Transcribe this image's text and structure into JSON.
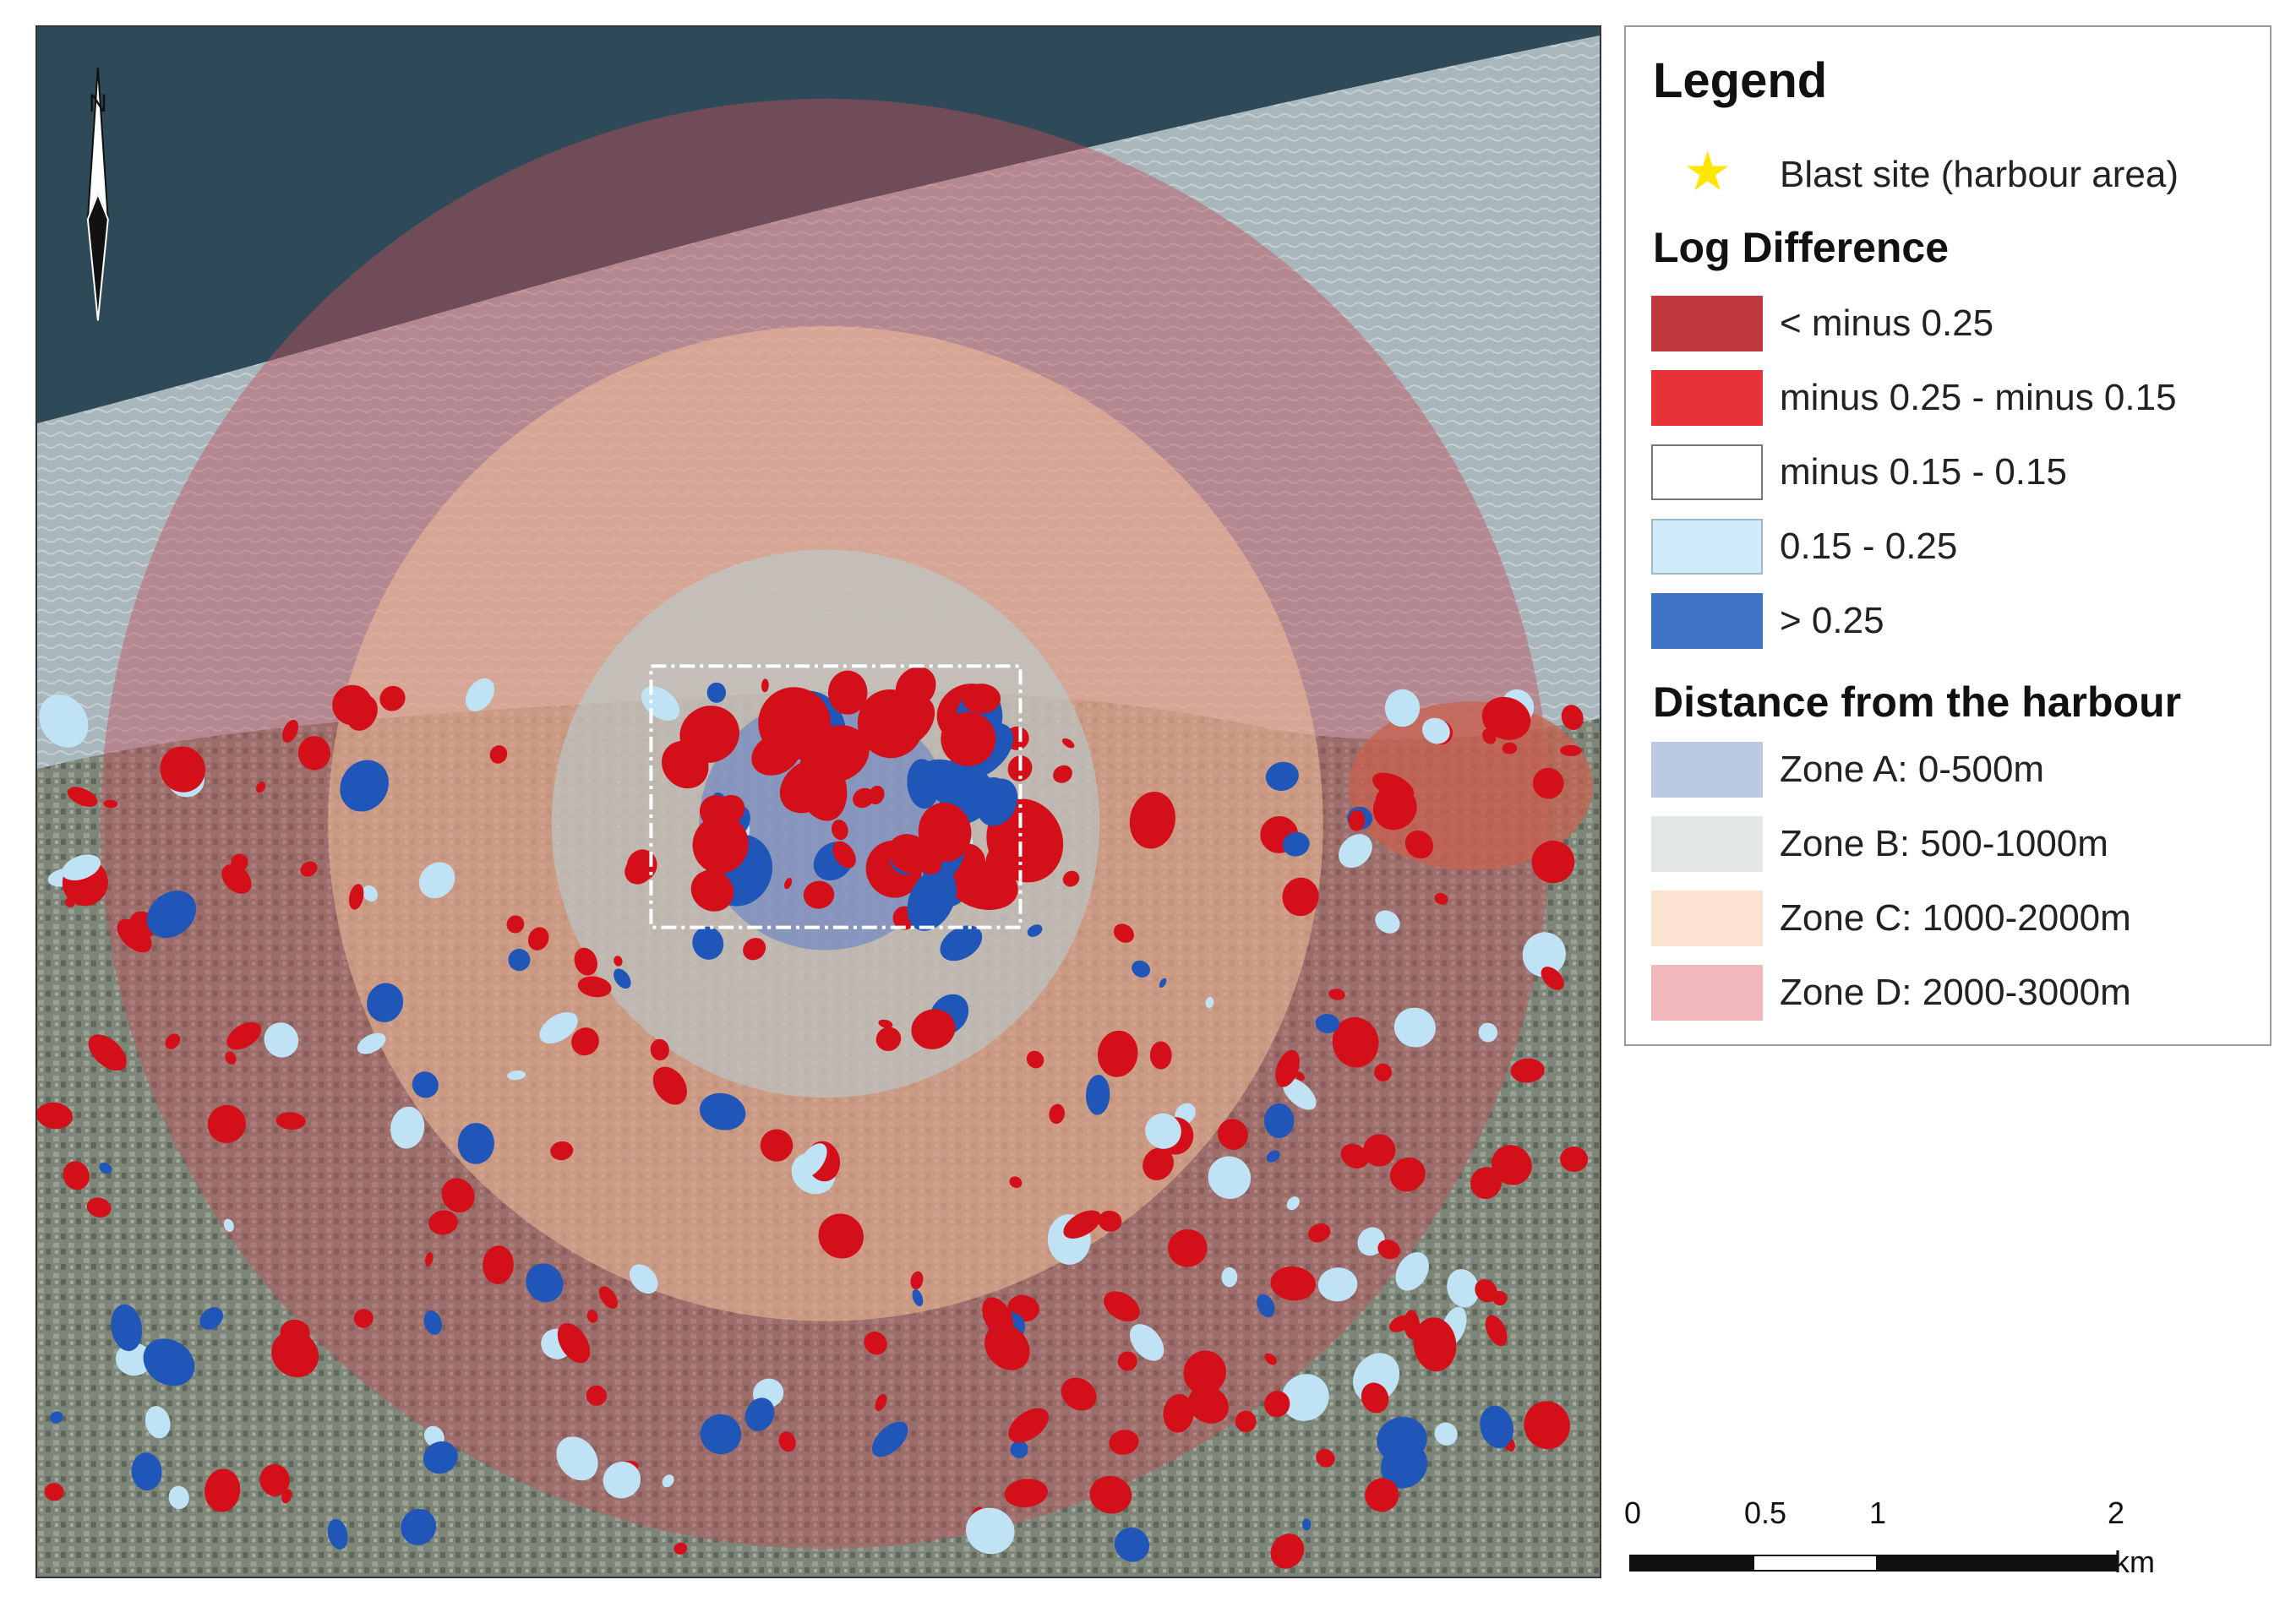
{
  "legend": {
    "title": "Legend",
    "blast": {
      "label": "Blast site (harbour area)",
      "color": "#ffe600",
      "icon": "star-icon"
    },
    "log_difference": {
      "heading": "Log Difference",
      "classes": [
        {
          "label": "< minus 0.25",
          "color": "#c0393d"
        },
        {
          "label": "minus 0.25 - minus 0.15",
          "color": "#e8323a"
        },
        {
          "label": "minus 0.15 - 0.15",
          "color": "#ffffff"
        },
        {
          "label": "0.15 - 0.25",
          "color": "#cfeaf8"
        },
        {
          "label": "> 0.25",
          "color": "#3f74c4"
        }
      ]
    },
    "distance": {
      "heading": "Distance from the harbour",
      "zones": [
        {
          "label": "Zone A: 0-500m",
          "color": "#bcc9e3"
        },
        {
          "label": "Zone B: 500-1000m",
          "color": "#e3e7e6"
        },
        {
          "label": "Zone C: 1000-2000m",
          "color": "#fbe3d2"
        },
        {
          "label": "Zone D: 2000-3000m",
          "color": "#f0b8bb"
        }
      ]
    }
  },
  "scale_bar": {
    "ticks": [
      "0",
      "0.5",
      "1",
      "2"
    ],
    "unit": "km"
  },
  "north_arrow": {
    "letter": "N",
    "icon": "north-arrow-icon"
  },
  "map": {
    "sea_color": "#2e4a58",
    "zone_colors": {
      "zone_d": "#c0505a",
      "zone_c": "#f0c09a",
      "zone_b": "#b7d2d6",
      "zone_a": "#5b7ac8"
    },
    "change_colors": {
      "red": "#d3101a",
      "blue": "#1f56b8",
      "light_blue": "#bfe3f5"
    }
  }
}
